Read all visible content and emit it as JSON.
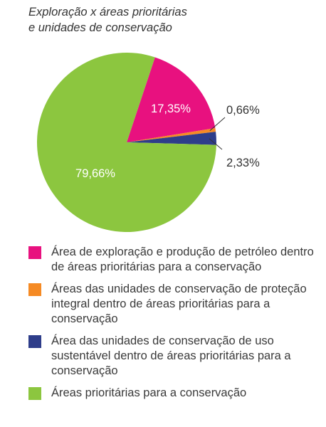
{
  "chart_data": {
    "type": "pie",
    "title_lines": [
      "Exploração x áreas prioritárias",
      "e unidades de conservação"
    ],
    "slices": [
      {
        "value_label": "17,35%",
        "value": 17.35,
        "color": "#e8117f",
        "legend": "Área de exploração e produção de petróleo dentro de áreas prioritárias para a conservação"
      },
      {
        "value_label": "0,66%",
        "value": 0.66,
        "color": "#f58a24",
        "legend": "Áreas das unidades de conservação de proteção integral dentro de áreas prioritárias para a conservação"
      },
      {
        "value_label": "2,33%",
        "value": 2.33,
        "color": "#2e3d8a",
        "legend": "Área das unidades de conservação de uso sustentável dentro de áreas prioritárias para a conservação"
      },
      {
        "value_label": "79,66%",
        "value": 79.66,
        "color": "#8cc63f",
        "legend": "Áreas prioritárias para a conservação"
      }
    ]
  }
}
